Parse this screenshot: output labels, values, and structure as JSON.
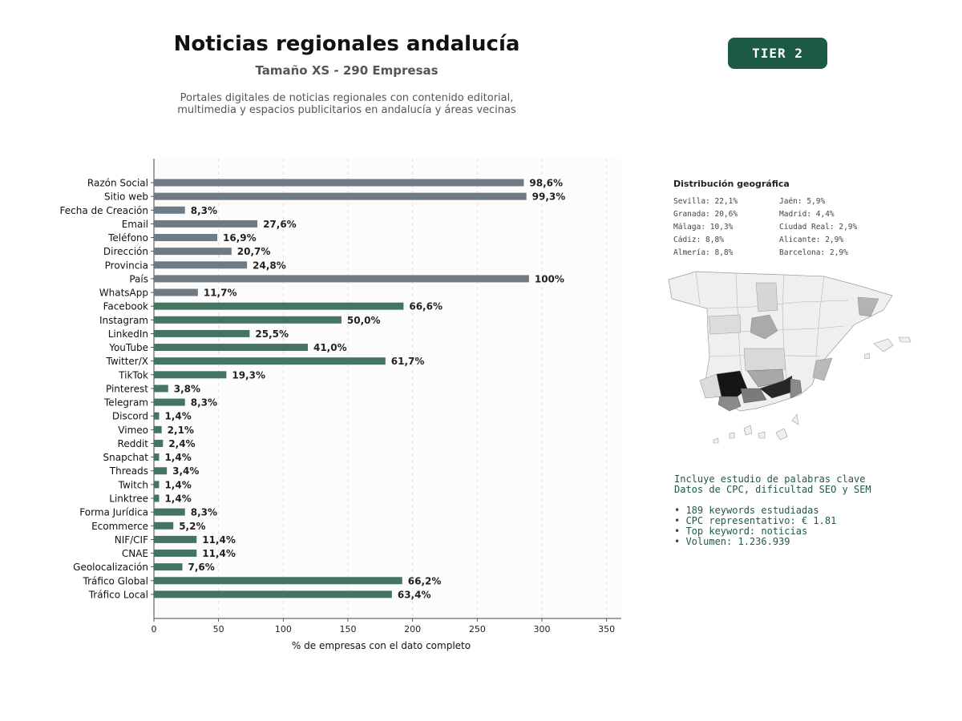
{
  "header": {
    "title": "Noticias regionales andalucía",
    "subtitle": "Tamaño XS - 290 Empresas",
    "desc_line1": "Portales digitales de noticias regionales con contenido editorial,",
    "desc_line2": "multimedia y espacios publicitarios en andalucía y áreas vecinas"
  },
  "badge": {
    "label": "TIER 2",
    "color": "#1d5a45"
  },
  "chart_data": {
    "type": "bar",
    "orientation": "horizontal",
    "xlabel": "% de empresas con el dato completo",
    "xlim": [
      0,
      360
    ],
    "xticks": [
      0,
      50,
      100,
      150,
      200,
      250,
      300,
      350
    ],
    "grid": true,
    "colors": {
      "basic": "#6e7a84",
      "social": "#437561"
    },
    "categories": [
      "Razón Social",
      "Sitio web",
      "Fecha de Creación",
      "Email",
      "Teléfono",
      "Dirección",
      "Provincia",
      "País",
      "WhatsApp",
      "Facebook",
      "Instagram",
      "LinkedIn",
      "YouTube",
      "Twitter/X",
      "TikTok",
      "Pinterest",
      "Telegram",
      "Discord",
      "Vimeo",
      "Reddit",
      "Snapchat",
      "Threads",
      "Twitch",
      "Linktree",
      "Forma Jurídica",
      "Ecommerce",
      "NIF/CIF",
      "CNAE",
      "Geolocalización",
      "Tráfico Global",
      "Tráfico Local"
    ],
    "values": [
      286,
      288,
      24,
      80,
      49,
      60,
      72,
      290,
      34,
      193,
      145,
      74,
      119,
      179,
      56,
      11,
      24,
      4,
      6,
      7,
      4,
      10,
      4,
      4,
      24,
      15,
      33,
      33,
      22,
      192,
      184
    ],
    "labels": [
      "98,6%",
      "99,3%",
      "8,3%",
      "27,6%",
      "16,9%",
      "20,7%",
      "24,8%",
      "100%",
      "11,7%",
      "66,6%",
      "50,0%",
      "25,5%",
      "41,0%",
      "61,7%",
      "19,3%",
      "3,8%",
      "8,3%",
      "1,4%",
      "2,1%",
      "2,4%",
      "1,4%",
      "3,4%",
      "1,4%",
      "1,4%",
      "8,3%",
      "5,2%",
      "11,4%",
      "11,4%",
      "7,6%",
      "66,2%",
      "63,4%"
    ],
    "groups": [
      "basic",
      "basic",
      "basic",
      "basic",
      "basic",
      "basic",
      "basic",
      "basic",
      "basic",
      "social",
      "social",
      "social",
      "social",
      "social",
      "social",
      "social",
      "social",
      "social",
      "social",
      "social",
      "social",
      "social",
      "social",
      "social",
      "social",
      "social",
      "social",
      "social",
      "social",
      "social",
      "social"
    ]
  },
  "geo": {
    "title": "Distribución geográfica",
    "items": [
      "Sevilla: 22,1%",
      "Jaén: 5,9%",
      "Granada: 20,6%",
      "Madrid: 4,4%",
      "Málaga: 10,3%",
      "Ciudad Real: 2,9%",
      "Cádiz: 8,8%",
      "Alicante: 2,9%",
      "Almería: 8,8%",
      "Barcelona: 2,9%"
    ],
    "map_icon": "spain-provinces-map"
  },
  "keywords": {
    "line1": "Incluye estudio de palabras clave",
    "line2": "Datos de CPC, dificultad SEO y SEM",
    "bullets": [
      "• 189 keywords estudiadas",
      "• CPC representativo: € 1.81",
      "• Top keyword: noticias",
      "• Volumen: 1.236.939"
    ],
    "color": "#1d5a45"
  }
}
